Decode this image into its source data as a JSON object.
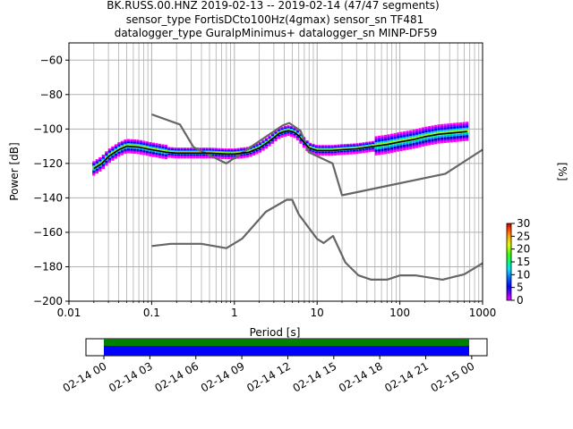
{
  "title": {
    "line1": "BK.RUSS.00.HNZ   2019-02-13 -- 2019-02-14  (47/47 segments)",
    "line2": "sensor_type FortisDCto100Hz(4gmax) sensor_sn TF481",
    "line3": "datalogger_type GuralpMinimus+ datalogger_sn MINP-DF59"
  },
  "chart_data": [
    {
      "type": "heatmap",
      "xlabel": "Period [s]",
      "ylabel": "Power [dB]",
      "xscale": "log",
      "xlim": [
        0.01,
        1000
      ],
      "ylim": [
        -200,
        -50
      ],
      "x_ticks": [
        {
          "value": 0.01,
          "label": "0.01"
        },
        {
          "value": 0.1,
          "label": "0.1"
        },
        {
          "value": 1,
          "label": "1"
        },
        {
          "value": 10,
          "label": "10"
        },
        {
          "value": 100,
          "label": "100"
        },
        {
          "value": 1000,
          "label": "1000"
        }
      ],
      "y_ticks": [
        {
          "value": -60,
          "label": "−60"
        },
        {
          "value": -80,
          "label": "−80"
        },
        {
          "value": -100,
          "label": "−100"
        },
        {
          "value": -120,
          "label": "−120"
        },
        {
          "value": -140,
          "label": "−140"
        },
        {
          "value": -160,
          "label": "−160"
        },
        {
          "value": -180,
          "label": "−180"
        },
        {
          "value": -200,
          "label": "−200"
        }
      ],
      "grid": true,
      "colorbar": {
        "label": "[%]",
        "range": [
          0,
          30
        ],
        "ticks": [
          {
            "value": 0,
            "label": "0"
          },
          {
            "value": 5,
            "label": "5"
          },
          {
            "value": 10,
            "label": "10"
          },
          {
            "value": 15,
            "label": "15"
          },
          {
            "value": 20,
            "label": "20"
          },
          {
            "value": 25,
            "label": "25"
          },
          {
            "value": 30,
            "label": "30"
          }
        ]
      },
      "series": [
        {
          "role": "noise-model-high",
          "color": "#666666",
          "x": [
            0.1,
            0.22,
            0.32,
            0.8,
            3.8,
            4.6,
            6.3,
            7.9,
            15.4,
            20,
            354.8,
            1000
          ],
          "y": [
            -91.5,
            -97.4,
            -110.5,
            -120,
            -98,
            -96.5,
            -101,
            -113.5,
            -120,
            -138.5,
            -126,
            -112
          ]
        },
        {
          "role": "noise-model-low",
          "color": "#666666",
          "x": [
            0.1,
            0.17,
            0.4,
            0.8,
            1.24,
            2.4,
            4.3,
            5,
            6,
            10,
            12,
            15.6,
            21.9,
            31.6,
            45,
            70,
            101,
            154,
            328,
            600,
            1000
          ],
          "y": [
            -168,
            -166.7,
            -166.7,
            -169.2,
            -163.7,
            -148.1,
            -141.1,
            -141.1,
            -149.6,
            -163.8,
            -166.2,
            -162.1,
            -177.5,
            -185,
            -187.5,
            -187.5,
            -185,
            -185,
            -187.5,
            -184.4,
            -178
          ]
        },
        {
          "role": "mode",
          "color": "#000000",
          "x": [
            0.02,
            0.025,
            0.03,
            0.04,
            0.05,
            0.07,
            0.1,
            0.15,
            0.2,
            0.3,
            0.5,
            0.8,
            1,
            1.5,
            2,
            2.5,
            3,
            3.5,
            4,
            4.5,
            5,
            5.5,
            6,
            7,
            8,
            10,
            15,
            20,
            30,
            50,
            70,
            100,
            150,
            200,
            300,
            500,
            650
          ],
          "y": [
            -123,
            -120,
            -116,
            -112,
            -110,
            -110.5,
            -112,
            -113.5,
            -114,
            -114,
            -114,
            -114.5,
            -114.5,
            -113.5,
            -111,
            -108,
            -105,
            -102.5,
            -101.5,
            -101,
            -101.5,
            -102.5,
            -104,
            -108,
            -111,
            -112.5,
            -112.5,
            -112,
            -111.5,
            -110,
            -109,
            -107.5,
            -106,
            -104.5,
            -103,
            -102,
            -101.5
          ]
        }
      ]
    },
    {
      "type": "timeline",
      "ticks": [
        "02-14 00",
        "02-14 03",
        "02-14 06",
        "02-14 09",
        "02-14 12",
        "02-14 15",
        "02-14 18",
        "02-14 21",
        "02-15 00"
      ],
      "range_hours": [
        -1.17,
        25
      ]
    }
  ]
}
